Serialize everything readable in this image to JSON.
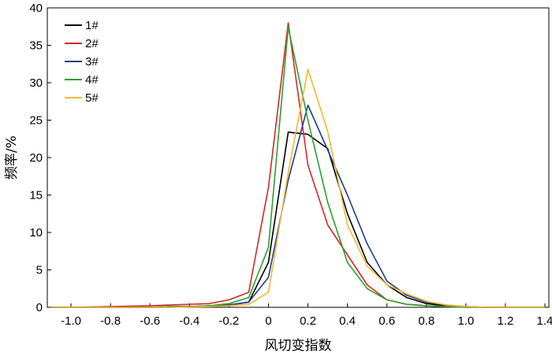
{
  "chart_data": {
    "type": "line",
    "title": "",
    "xlabel": "风切变指数",
    "ylabel": "频率/%",
    "xlim": [
      -1.12,
      1.42
    ],
    "ylim": [
      0,
      40
    ],
    "xticks": [
      -1.0,
      -0.8,
      -0.6,
      -0.4,
      -0.2,
      0,
      0.2,
      0.4,
      0.6,
      0.8,
      1.0,
      1.2,
      1.4
    ],
    "xtick_labels": [
      "-1.0",
      "-0.8",
      "-0.6",
      "-0.4",
      "-0.2",
      "0",
      "0.2",
      "0.4",
      "0.6",
      "0.8",
      "1.0",
      "1.2",
      "1.4"
    ],
    "yticks": [
      0,
      5,
      10,
      15,
      20,
      25,
      30,
      35,
      40
    ],
    "ytick_labels": [
      "0",
      "5",
      "10",
      "15",
      "20",
      "25",
      "30",
      "35",
      "40"
    ],
    "grid": false,
    "legend_position": "top-left",
    "x": [
      -1.1,
      -1.0,
      -0.9,
      -0.8,
      -0.7,
      -0.6,
      -0.5,
      -0.4,
      -0.3,
      -0.2,
      -0.1,
      0.0,
      0.1,
      0.2,
      0.3,
      0.4,
      0.5,
      0.6,
      0.7,
      0.8,
      0.9,
      1.0,
      1.1,
      1.2,
      1.3,
      1.4
    ],
    "series": [
      {
        "name": "1#",
        "color": "#000000",
        "values": [
          0,
          0,
          0,
          0,
          0,
          0,
          0.1,
          0.1,
          0.2,
          0.3,
          0.7,
          6.0,
          23.4,
          23.1,
          21.2,
          12.5,
          6.0,
          3.0,
          1.3,
          0.5,
          0.2,
          0.1,
          0,
          0,
          0,
          0
        ]
      },
      {
        "name": "2#",
        "color": "#d62728",
        "values": [
          0,
          0,
          0.05,
          0.1,
          0.15,
          0.2,
          0.3,
          0.4,
          0.5,
          1.0,
          2.0,
          16.0,
          38.0,
          19.0,
          11.0,
          7.0,
          3.0,
          1.0,
          0.4,
          0.2,
          0.1,
          0,
          0,
          0,
          0,
          0
        ]
      },
      {
        "name": "3#",
        "color": "#1f3f8f",
        "values": [
          0,
          0,
          0,
          0,
          0,
          0,
          0,
          0.1,
          0.2,
          0.3,
          0.7,
          4.0,
          17.0,
          27.0,
          21.0,
          15.0,
          8.5,
          3.5,
          1.6,
          0.7,
          0.3,
          0.1,
          0,
          0,
          0,
          0
        ]
      },
      {
        "name": "4#",
        "color": "#2ca02c",
        "values": [
          0,
          0,
          0,
          0,
          0,
          0,
          0.1,
          0.1,
          0.2,
          0.5,
          1.3,
          8.0,
          37.4,
          25.0,
          14.0,
          6.0,
          2.5,
          1.0,
          0.4,
          0.2,
          0.1,
          0,
          0,
          0,
          0,
          0
        ]
      },
      {
        "name": "5#",
        "color": "#f5b731",
        "values": [
          0,
          0,
          0,
          0,
          0,
          0,
          0,
          0.05,
          0.1,
          0.2,
          0.4,
          2.0,
          18.0,
          31.8,
          23.5,
          11.0,
          5.5,
          3.0,
          1.8,
          0.8,
          0.3,
          0.1,
          0,
          0,
          0,
          0
        ]
      }
    ]
  }
}
